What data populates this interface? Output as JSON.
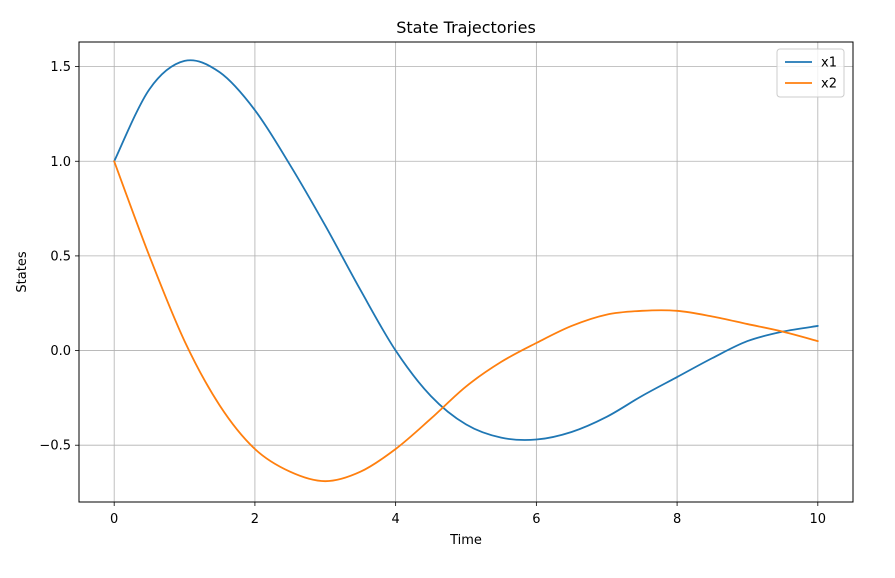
{
  "chart_data": {
    "type": "line",
    "title": "State Trajectories",
    "xlabel": "Time",
    "ylabel": "States",
    "xlim": [
      -0.5,
      10.5
    ],
    "ylim": [
      -0.8,
      1.63
    ],
    "xticks": [
      0,
      2,
      4,
      6,
      8,
      10
    ],
    "xtick_labels": [
      "0",
      "2",
      "4",
      "6",
      "8",
      "10"
    ],
    "yticks": [
      -0.5,
      0.0,
      0.5,
      1.0,
      1.5
    ],
    "ytick_labels": [
      "−0.5",
      "0.0",
      "0.5",
      "1.0",
      "1.5"
    ],
    "grid": true,
    "legend_position": "top-right",
    "x": [
      0,
      0.5,
      1,
      1.5,
      2,
      2.5,
      3,
      3.5,
      4,
      4.5,
      5,
      5.5,
      6,
      6.5,
      7,
      7.5,
      8,
      8.5,
      9,
      9.5,
      10
    ],
    "series": [
      {
        "name": "x1",
        "color": "#1f77b4",
        "values": [
          1.0,
          1.38,
          1.53,
          1.47,
          1.27,
          0.98,
          0.66,
          0.32,
          0.0,
          -0.24,
          -0.39,
          -0.46,
          -0.47,
          -0.43,
          -0.35,
          -0.24,
          -0.14,
          -0.04,
          0.05,
          0.1,
          0.13
        ]
      },
      {
        "name": "x2",
        "color": "#ff7f0e",
        "values": [
          1.0,
          0.5,
          0.05,
          -0.29,
          -0.52,
          -0.64,
          -0.69,
          -0.64,
          -0.52,
          -0.36,
          -0.19,
          -0.06,
          0.04,
          0.13,
          0.19,
          0.21,
          0.21,
          0.18,
          0.14,
          0.1,
          0.05
        ]
      }
    ]
  }
}
